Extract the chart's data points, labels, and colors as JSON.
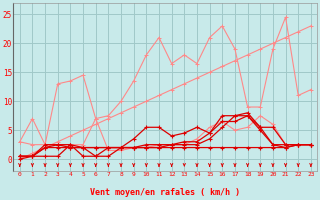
{
  "bg_color": "#c8eaea",
  "grid_color": "#a0c8c8",
  "x_ticks": [
    0,
    1,
    2,
    3,
    4,
    5,
    6,
    7,
    8,
    9,
    10,
    11,
    12,
    13,
    14,
    15,
    16,
    17,
    18,
    19,
    20,
    21,
    22,
    23
  ],
  "ylim": [
    -2,
    27
  ],
  "yticks": [
    0,
    5,
    10,
    15,
    20,
    25
  ],
  "xlabel": "Vent moyen/en rafales ( km/h )",
  "line_color_light": "#ff8888",
  "line_color_dark": "#dd0000",
  "arrow_color": "#dd0000",
  "series_light": [
    [
      3.0,
      7.0,
      2.5,
      13.0,
      13.5,
      14.5,
      7.0,
      7.5,
      10.0,
      13.5,
      18.0,
      21.0,
      16.5,
      18.0,
      16.5,
      21.0,
      23.0,
      19.0,
      9.0,
      9.0,
      19.0,
      24.5,
      11.0,
      12.0
    ],
    [
      3.0,
      2.5,
      2.5,
      2.5,
      2.5,
      2.5,
      7.0,
      1.5,
      1.5,
      2.0,
      2.0,
      2.5,
      2.5,
      2.5,
      3.5,
      5.5,
      6.5,
      5.0,
      5.5,
      7.5,
      6.0,
      2.5,
      2.5,
      2.5
    ],
    [
      0.0,
      1.0,
      2.0,
      3.0,
      4.0,
      5.0,
      6.0,
      7.0,
      8.0,
      9.0,
      10.0,
      11.0,
      12.0,
      13.0,
      14.0,
      15.0,
      16.0,
      17.0,
      18.0,
      19.0,
      20.0,
      21.0,
      22.0,
      23.0
    ]
  ],
  "series_dark": [
    [
      0.5,
      0.5,
      2.0,
      2.5,
      2.0,
      2.0,
      2.0,
      2.0,
      2.0,
      2.0,
      2.5,
      2.5,
      2.5,
      2.5,
      2.5,
      3.5,
      5.5,
      7.5,
      8.0,
      5.5,
      5.5,
      2.5,
      2.5,
      2.5
    ],
    [
      0.5,
      0.5,
      0.5,
      0.5,
      2.5,
      0.5,
      0.5,
      2.0,
      2.0,
      3.5,
      5.5,
      5.5,
      4.0,
      4.5,
      5.5,
      4.5,
      6.5,
      6.5,
      7.5,
      5.5,
      2.5,
      2.0,
      2.5,
      2.5
    ],
    [
      0.5,
      0.5,
      2.0,
      2.0,
      2.0,
      2.0,
      0.5,
      0.5,
      2.0,
      2.0,
      2.0,
      2.0,
      2.5,
      3.0,
      3.0,
      4.5,
      7.5,
      7.5,
      7.5,
      5.0,
      2.5,
      2.5,
      2.5,
      2.5
    ],
    [
      0.0,
      0.5,
      2.5,
      2.5,
      2.5,
      2.0,
      2.0,
      2.0,
      2.0,
      2.0,
      2.0,
      2.0,
      2.0,
      2.0,
      2.0,
      2.0,
      2.0,
      2.0,
      2.0,
      2.0,
      2.0,
      2.0,
      2.5,
      2.5
    ]
  ]
}
